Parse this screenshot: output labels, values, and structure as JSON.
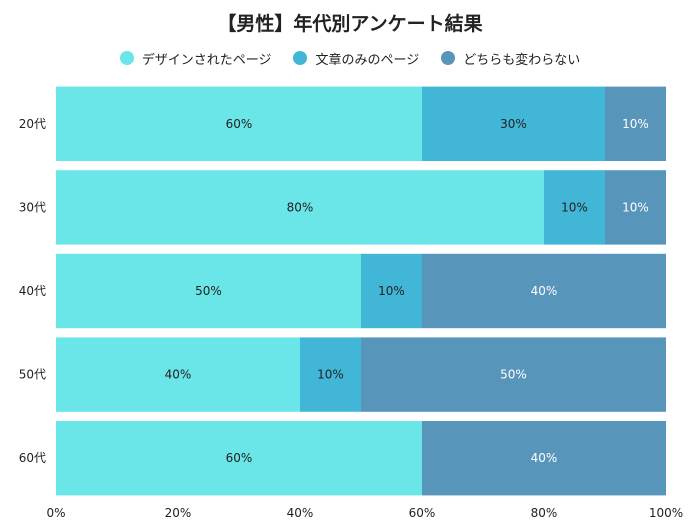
{
  "chart_data": {
    "type": "bar",
    "orientation": "horizontal",
    "stacked": true,
    "title": "【男性】年代別アンケート結果",
    "categories": [
      "20代",
      "30代",
      "40代",
      "50代",
      "60代"
    ],
    "series": [
      {
        "name": "デザインされたページ",
        "color": "#6ae5e8",
        "label_color": "#222222",
        "values": [
          60,
          80,
          50,
          40,
          60
        ],
        "labels": [
          "60%",
          "80%",
          "50%",
          "40%",
          "60%"
        ]
      },
      {
        "name": "文章のみのページ",
        "color": "#42b6d6",
        "label_color": "#222222",
        "values": [
          30,
          10,
          10,
          10,
          0
        ],
        "labels": [
          "30%",
          "10%",
          "10%",
          "10%",
          ""
        ]
      },
      {
        "name": "どちらも変わらない",
        "color": "#5895bb",
        "label_color": "#ffffff",
        "values": [
          10,
          10,
          40,
          50,
          40
        ],
        "labels": [
          "10%",
          "10%",
          "40%",
          "50%",
          "40%"
        ]
      }
    ],
    "xlim": [
      0,
      100
    ],
    "xticks": [
      "0%",
      "20%",
      "40%",
      "60%",
      "80%",
      "100%"
    ],
    "xlabel": "",
    "ylabel": "",
    "legend_position": "top",
    "grid": false
  }
}
